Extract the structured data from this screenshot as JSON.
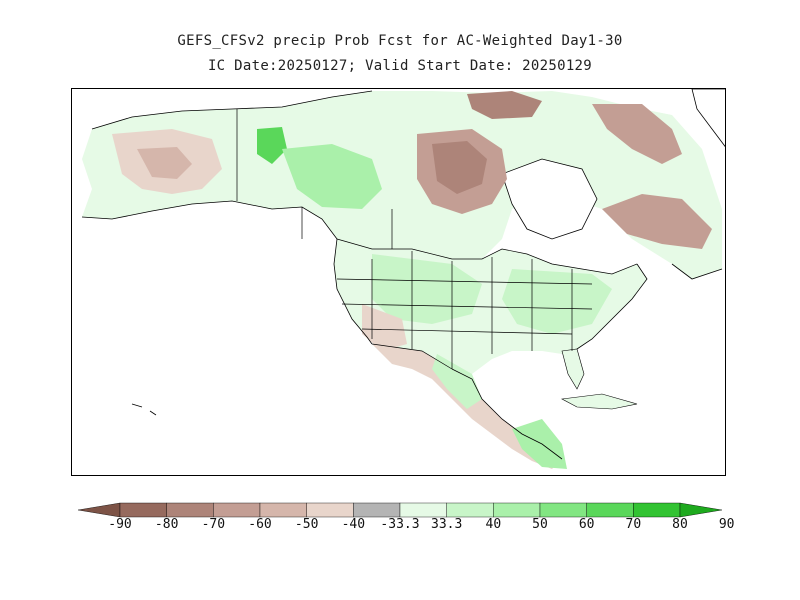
{
  "title": "GEFS_CFSv2 precip Prob Fcst for AC-Weighted Day1-30",
  "subtitle": "IC Date:20250127; Valid Start Date: 20250129",
  "legend": {
    "bins": [
      {
        "color": "#7d5346"
      },
      {
        "color": "#966a5e"
      },
      {
        "color": "#ad8479"
      },
      {
        "color": "#c39e94"
      },
      {
        "color": "#d5b6ab"
      },
      {
        "color": "#e8d5cb"
      },
      {
        "color": "#b4b4b4"
      },
      {
        "color": "#e6fae6"
      },
      {
        "color": "#c8f5c8"
      },
      {
        "color": "#aaf0aa"
      },
      {
        "color": "#82e682"
      },
      {
        "color": "#5ad75a"
      },
      {
        "color": "#32c332"
      },
      {
        "color": "#1eaa1e"
      }
    ],
    "tick_labels": [
      "-90",
      "-80",
      "-70",
      "-60",
      "-50",
      "-40",
      "-33.3",
      "33.3",
      "40",
      "50",
      "60",
      "70",
      "80",
      "90"
    ]
  },
  "colors": {
    "land_neutral": "#ffffff",
    "water": "#ffffff",
    "border": "#000000"
  }
}
